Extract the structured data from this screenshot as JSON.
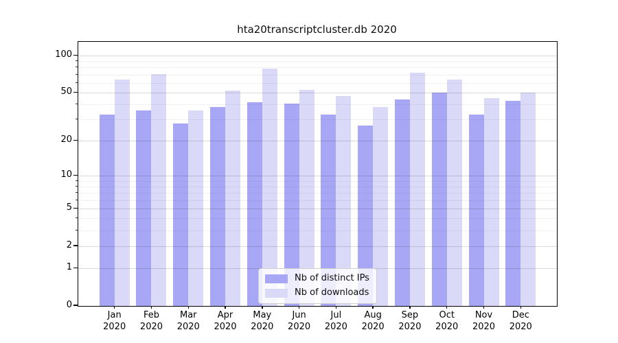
{
  "chart_data": {
    "type": "bar",
    "title": "hta20transcriptcluster.db 2020",
    "categories": [
      "Jan 2020",
      "Feb 2020",
      "Mar 2020",
      "Apr 2020",
      "May 2020",
      "Jun 2020",
      "Jul 2020",
      "Aug 2020",
      "Sep 2020",
      "Oct 2020",
      "Nov 2020",
      "Dec 2020"
    ],
    "x_tick_month": [
      "Jan",
      "Feb",
      "Mar",
      "Apr",
      "May",
      "Jun",
      "Jul",
      "Aug",
      "Sep",
      "Oct",
      "Nov",
      "Dec"
    ],
    "x_tick_year": "2020",
    "series": [
      {
        "name": "Nb of distinct IPs",
        "color": "#a7a7f6",
        "values": [
          33,
          36,
          28,
          38,
          42,
          41,
          33,
          27,
          44,
          50,
          33,
          43
        ]
      },
      {
        "name": "Nb of downloads",
        "color": "#dadaf8",
        "values": [
          64,
          71,
          36,
          52,
          79,
          53,
          47,
          38,
          73,
          64,
          45,
          50
        ]
      }
    ],
    "xlabel": "",
    "ylabel": "",
    "y_scale": "log1p",
    "ylim": [
      0,
      130
    ],
    "y_major_ticks": [
      0,
      1,
      2,
      5,
      10,
      20,
      50,
      100
    ],
    "y_minor_ticks": [
      3,
      4,
      6,
      7,
      8,
      9,
      30,
      40,
      60,
      70,
      80,
      90
    ],
    "grid": "horizontal",
    "legend_position": "lower center"
  }
}
